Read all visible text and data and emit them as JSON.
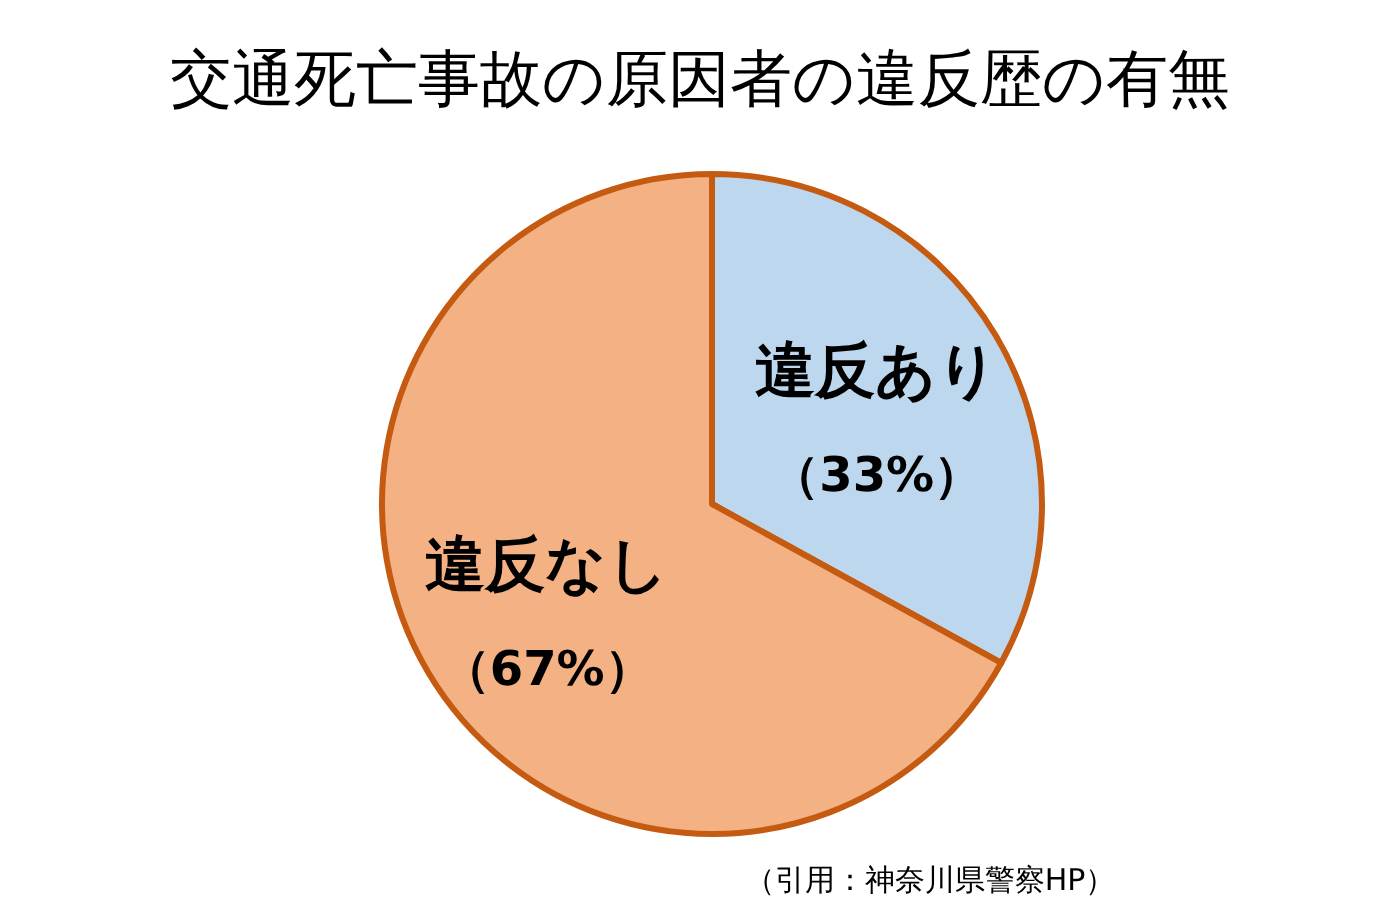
{
  "chart_data": {
    "type": "pie",
    "title": "交通死亡事故の原因者の違反歴の有無",
    "categories": [
      "違反あり",
      "違反なし"
    ],
    "values": [
      33,
      67
    ],
    "value_labels": [
      "（33%）",
      "（67%）"
    ],
    "colors": [
      "#bdd7ee",
      "#f4b183"
    ],
    "annotations": [
      "（引用：神奈川県警察HP）"
    ]
  }
}
